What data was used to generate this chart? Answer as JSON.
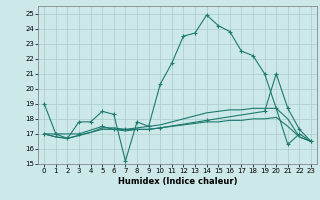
{
  "xlabel": "Humidex (Indice chaleur)",
  "xlim": [
    -0.5,
    23.5
  ],
  "ylim": [
    15,
    25.5
  ],
  "yticks": [
    15,
    16,
    17,
    18,
    19,
    20,
    21,
    22,
    23,
    24,
    25
  ],
  "xticks": [
    0,
    1,
    2,
    3,
    4,
    5,
    6,
    7,
    8,
    9,
    10,
    11,
    12,
    13,
    14,
    15,
    16,
    17,
    18,
    19,
    20,
    21,
    22,
    23
  ],
  "background_color": "#cce8e8",
  "grid_color": "#aacccc",
  "line_color": "#1e7a6e",
  "line1": {
    "x": [
      0,
      1,
      2,
      3,
      4,
      5,
      6,
      7,
      8,
      9,
      10,
      11,
      12,
      13,
      14,
      15,
      16,
      17,
      18,
      19,
      20,
      21,
      22,
      23
    ],
    "y": [
      19.0,
      17.0,
      16.7,
      17.8,
      17.8,
      18.5,
      18.3,
      15.2,
      17.8,
      17.5,
      20.3,
      21.7,
      23.5,
      23.7,
      24.9,
      24.2,
      23.8,
      22.5,
      22.2,
      21.0,
      18.7,
      16.3,
      17.0,
      16.5
    ]
  },
  "line2": {
    "x": [
      0,
      1,
      3,
      5,
      6,
      7,
      8,
      9,
      10,
      14,
      19,
      20,
      21,
      22,
      23
    ],
    "y": [
      17.0,
      17.0,
      17.0,
      17.5,
      17.3,
      17.3,
      17.3,
      17.3,
      17.4,
      17.9,
      18.5,
      21.0,
      18.7,
      17.3,
      16.5
    ]
  },
  "line3": {
    "x": [
      0,
      1,
      2,
      3,
      4,
      5,
      6,
      7,
      8,
      9,
      10,
      11,
      12,
      13,
      14,
      15,
      16,
      17,
      18,
      19,
      20,
      21,
      22,
      23
    ],
    "y": [
      17.0,
      16.8,
      16.7,
      16.9,
      17.1,
      17.3,
      17.3,
      17.2,
      17.3,
      17.3,
      17.4,
      17.5,
      17.6,
      17.7,
      17.8,
      17.8,
      17.9,
      17.9,
      18.0,
      18.0,
      18.1,
      17.5,
      16.8,
      16.5
    ]
  },
  "line4": {
    "x": [
      0,
      1,
      2,
      3,
      4,
      5,
      6,
      7,
      8,
      9,
      10,
      11,
      12,
      13,
      14,
      15,
      16,
      17,
      18,
      19,
      20,
      21,
      22,
      23
    ],
    "y": [
      17.0,
      16.8,
      16.7,
      16.9,
      17.1,
      17.4,
      17.4,
      17.3,
      17.4,
      17.5,
      17.6,
      17.8,
      18.0,
      18.2,
      18.4,
      18.5,
      18.6,
      18.6,
      18.7,
      18.7,
      18.7,
      18.0,
      16.8,
      16.5
    ]
  }
}
